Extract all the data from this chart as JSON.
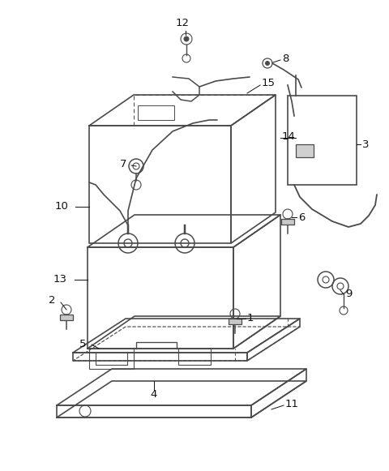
{
  "bg_color": "#ffffff",
  "line_color": "#4a4a4a",
  "label_color": "#111111",
  "fig_width": 4.8,
  "fig_height": 5.81,
  "dpi": 100
}
